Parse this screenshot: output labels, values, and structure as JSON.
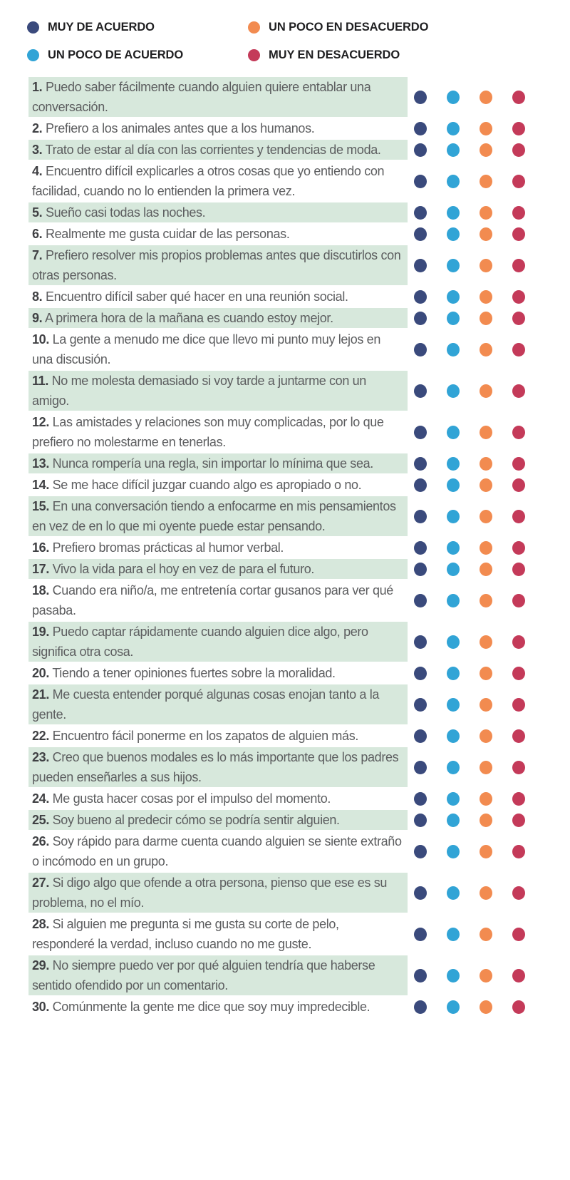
{
  "colors": {
    "background": "#FFFFFF",
    "highlight": "#D7E8DC",
    "question_text": "#5C5D5F",
    "question_number": "#404144",
    "legend_text": "#1F1F21"
  },
  "options": [
    {
      "id": "muy-de-acuerdo",
      "label": "MUY DE ACUERDO",
      "color": "#3A4A7C"
    },
    {
      "id": "un-poco-de-acuerdo",
      "label": "UN POCO DE ACUERDO",
      "color": "#31A4D6"
    },
    {
      "id": "un-poco-en-desacuerdo",
      "label": "UN POCO EN DESACUERDO",
      "color": "#F28B50"
    },
    {
      "id": "muy-en-desacuerdo",
      "label": "MUY EN DESACUERDO",
      "color": "#C43A59"
    }
  ],
  "questions": [
    {
      "num": "1.",
      "text": "Puedo saber fácilmente cuando alguien quiere entablar una conversación.",
      "highlighted": true
    },
    {
      "num": "2.",
      "text": "Prefiero a los animales antes que a los humanos.",
      "highlighted": false
    },
    {
      "num": "3.",
      "text": "Trato de estar al día con las corrientes y tendencias de moda.",
      "highlighted": true
    },
    {
      "num": "4.",
      "text": "Encuentro difícil explicarles a otros cosas que yo entiendo con facilidad, cuando no lo entienden la primera vez.",
      "highlighted": false
    },
    {
      "num": "5.",
      "text": "Sueño casi todas las noches.",
      "highlighted": true
    },
    {
      "num": "6.",
      "text": "Realmente me gusta cuidar de las personas.",
      "highlighted": false
    },
    {
      "num": "7.",
      "text": "Prefiero resolver mis propios problemas antes que discutirlos con otras personas.",
      "highlighted": true
    },
    {
      "num": "8.",
      "text": "Encuentro difícil saber qué hacer en una reunión social.",
      "highlighted": false
    },
    {
      "num": "9.",
      "text": "A primera hora de la mañana es cuando estoy mejor.",
      "highlighted": true
    },
    {
      "num": "10.",
      "text": "La gente a menudo me dice que llevo mi punto muy lejos en una discusión.",
      "highlighted": false
    },
    {
      "num": "11.",
      "text": "No me molesta demasiado si voy tarde a juntarme con un amigo.",
      "highlighted": true
    },
    {
      "num": "12.",
      "text": "Las amistades y relaciones son muy complicadas, por lo que prefiero no molestarme en tenerlas.",
      "highlighted": false
    },
    {
      "num": "13.",
      "text": "Nunca rompería una regla, sin importar lo mínima que sea.",
      "highlighted": true
    },
    {
      "num": "14.",
      "text": "Se me hace difícil juzgar cuando algo es apropiado o no.",
      "highlighted": false
    },
    {
      "num": "15.",
      "text": "En una conversación tiendo a enfocarme en mis pensamientos en vez de en lo que mi oyente puede estar pensando.",
      "highlighted": true
    },
    {
      "num": "16.",
      "text": "Prefiero bromas prácticas al humor verbal.",
      "highlighted": false
    },
    {
      "num": "17.",
      "text": "Vivo la vida para el hoy en vez de para el futuro.",
      "highlighted": true
    },
    {
      "num": "18.",
      "text": "Cuando era niño/a, me entretenía cortar gusanos para ver qué pasaba.",
      "highlighted": false
    },
    {
      "num": "19.",
      "text": "Puedo captar rápidamente cuando alguien dice algo, pero significa otra cosa.",
      "highlighted": true
    },
    {
      "num": "20.",
      "text": "Tiendo a tener opiniones fuertes sobre la moralidad.",
      "highlighted": false
    },
    {
      "num": "21.",
      "text": "Me cuesta entender porqué algunas cosas enojan tanto a la gente.",
      "highlighted": true
    },
    {
      "num": "22.",
      "text": "Encuentro fácil ponerme en los zapatos de alguien más.",
      "highlighted": false
    },
    {
      "num": "23.",
      "text": "Creo que buenos modales es lo más importante que los padres pueden enseñarles a sus hijos.",
      "highlighted": true
    },
    {
      "num": "24.",
      "text": "Me gusta hacer cosas por el impulso del momento.",
      "highlighted": false
    },
    {
      "num": "25.",
      "text": "Soy bueno al predecir cómo se podría sentir alguien.",
      "highlighted": true
    },
    {
      "num": "26.",
      "text": "Soy rápido para darme cuenta cuando alguien se siente extraño o incómodo en un grupo.",
      "highlighted": false
    },
    {
      "num": "27.",
      "text": "Si digo algo que ofende a otra persona, pienso que ese es su problema, no el mío.",
      "highlighted": true
    },
    {
      "num": "28.",
      "text": "Si alguien me pregunta si me gusta su corte de pelo, responderé la verdad, incluso cuando no me guste.",
      "highlighted": false
    },
    {
      "num": "29.",
      "text": "No siempre puedo ver por qué alguien tendría que haberse sentido ofendido por un comentario.",
      "highlighted": true
    },
    {
      "num": "30.",
      "text": "Comúnmente la gente me dice que soy muy impredecible.",
      "highlighted": false
    }
  ]
}
